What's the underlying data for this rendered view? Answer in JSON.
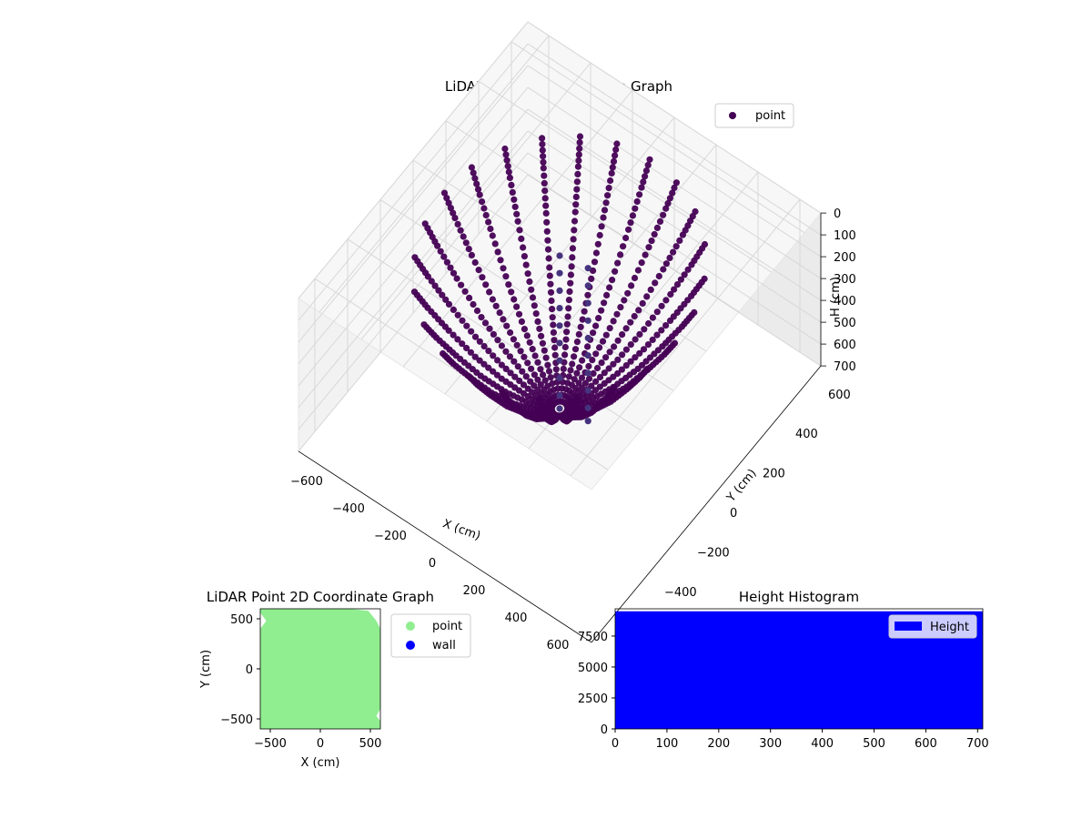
{
  "chart_data": [
    {
      "type": "scatter",
      "projection": "3d",
      "title": "LiDAR Point 3D Coordinate Graph",
      "xlabel": "X (cm)",
      "ylabel": "Y (cm)",
      "zlabel": "H (cm)",
      "xlim": [
        -700,
        700
      ],
      "ylim": [
        -700,
        700
      ],
      "zlim": [
        700,
        0
      ],
      "z_inverted": true,
      "xticks": [
        -600,
        -400,
        -200,
        0,
        200,
        400,
        600
      ],
      "xtick_labels": [
        "−600",
        "−400",
        "−200",
        "0",
        "200",
        "400",
        "600"
      ],
      "yticks": [
        -600,
        -400,
        -200,
        0,
        200,
        400,
        600
      ],
      "ytick_labels": [
        "−600",
        "−400",
        "−200",
        "0",
        "200",
        "400",
        "600"
      ],
      "zticks": [
        0,
        100,
        200,
        300,
        400,
        500,
        600,
        700
      ],
      "ztick_labels": [
        "0",
        "100",
        "200",
        "300",
        "400",
        "500",
        "600",
        "700"
      ],
      "grid": true,
      "legend": {
        "placement": "top-right",
        "entries": [
          "point"
        ]
      },
      "series": [
        {
          "name": "point",
          "color": "#440154",
          "description_points": "radial LiDAR scan rays forming a bowl; approximate sample points along rays",
          "ray_angles_deg": [
            0,
            15,
            30,
            45,
            60,
            75,
            90,
            105,
            120,
            135,
            150,
            165,
            180,
            195,
            210,
            225,
            240,
            255,
            270,
            285,
            300,
            315,
            330,
            345
          ],
          "ray_profile": [
            {
              "r": 30,
              "h": 700
            },
            {
              "r": 120,
              "h": 620
            },
            {
              "r": 220,
              "h": 520
            },
            {
              "r": 320,
              "h": 400
            },
            {
              "r": 420,
              "h": 260
            },
            {
              "r": 500,
              "h": 140
            },
            {
              "r": 560,
              "h": 40
            }
          ],
          "vertical_columns": [
            {
              "x": 0,
              "y": 0,
              "h": [
                0,
                80,
                160,
                240,
                320,
                400,
                480,
                560,
                640,
                700
              ]
            },
            {
              "x": 120,
              "y": 20,
              "h": [
                0,
                80,
                160,
                240,
                320,
                400,
                480,
                560,
                640,
                700
              ]
            }
          ]
        }
      ]
    },
    {
      "type": "scatter",
      "title": "LiDAR Point 2D Coordinate Graph",
      "xlabel": "X (cm)",
      "ylabel": "Y (cm)",
      "xlim": [
        -600,
        600
      ],
      "ylim": [
        -600,
        600
      ],
      "xticks": [
        -500,
        0,
        500
      ],
      "xtick_labels": [
        "−500",
        "0",
        "500"
      ],
      "yticks": [
        -500,
        0,
        500
      ],
      "ytick_labels": [
        "−500",
        "0",
        "500"
      ],
      "legend": {
        "placement": "outside-right",
        "entries": [
          "point",
          "wall"
        ]
      },
      "series": [
        {
          "name": "point",
          "color": "#90ee90",
          "coverage": "fills almost entire plot area"
        },
        {
          "name": "wall",
          "color": "#0000ff",
          "points": []
        }
      ]
    },
    {
      "type": "bar",
      "title": "Height Histogram",
      "xlim": [
        0,
        710
      ],
      "ylim": [
        0,
        9700
      ],
      "xticks": [
        0,
        100,
        200,
        300,
        400,
        500,
        600,
        700
      ],
      "xtick_labels": [
        "0",
        "100",
        "200",
        "300",
        "400",
        "500",
        "600",
        "700"
      ],
      "yticks": [
        0,
        2500,
        5000,
        7500
      ],
      "ytick_labels": [
        "0",
        "2500",
        "5000",
        "7500"
      ],
      "legend": {
        "placement": "top-right",
        "entries": [
          "Height"
        ]
      },
      "series": [
        {
          "name": "Height",
          "color": "#0000ff",
          "bin_start": 0,
          "bin_end": 710,
          "value": 9500
        }
      ]
    }
  ]
}
